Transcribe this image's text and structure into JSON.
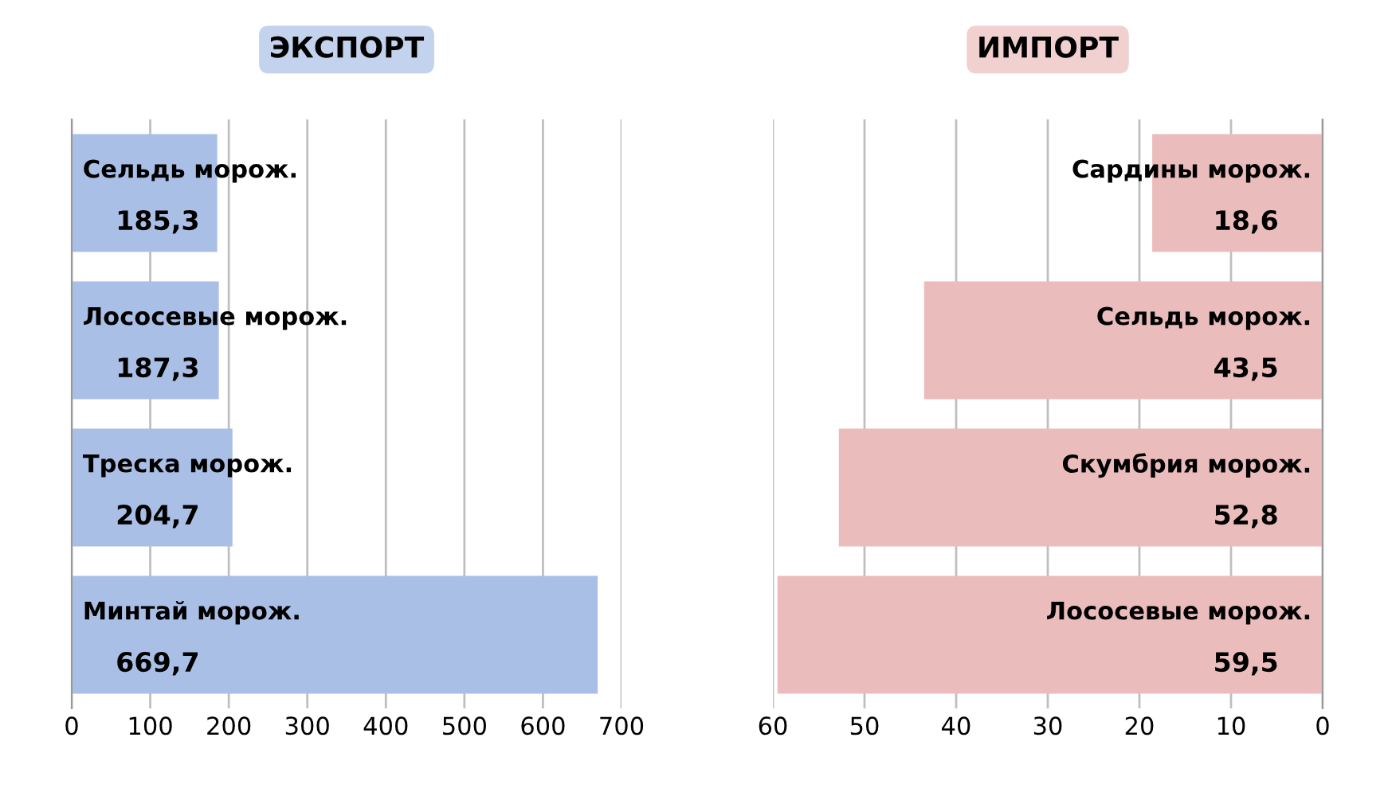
{
  "chart_data": [
    {
      "type": "bar",
      "orientation": "horizontal",
      "title": "ЭКСПОРТ",
      "categories": [
        "Сельдь морож.",
        "Лососевые морож.",
        "Треска морож.",
        "Минтай морож."
      ],
      "values": [
        185.3,
        187.3,
        204.7,
        669.7
      ],
      "value_labels": [
        "185,3",
        "187,3",
        "204,7",
        "669,7"
      ],
      "color": "#a9bfe6",
      "xlim": [
        0,
        700
      ],
      "xticks": [
        0,
        100,
        200,
        300,
        400,
        500,
        600,
        700
      ],
      "grid": "x",
      "legend": false
    },
    {
      "type": "bar",
      "orientation": "horizontal",
      "title": "ИМПОРТ",
      "categories": [
        "Сардины морож.",
        "Сельдь морож.",
        "Скумбрия морож.",
        "Лососевые морож."
      ],
      "values": [
        18.6,
        43.5,
        52.8,
        59.5
      ],
      "value_labels": [
        "18,6",
        "43,5",
        "52,8",
        "59,5"
      ],
      "color": "#ebbcbc",
      "xlim": [
        60,
        0
      ],
      "xticks": [
        60,
        50,
        40,
        30,
        20,
        10,
        0
      ],
      "grid": "x",
      "legend": false
    }
  ]
}
